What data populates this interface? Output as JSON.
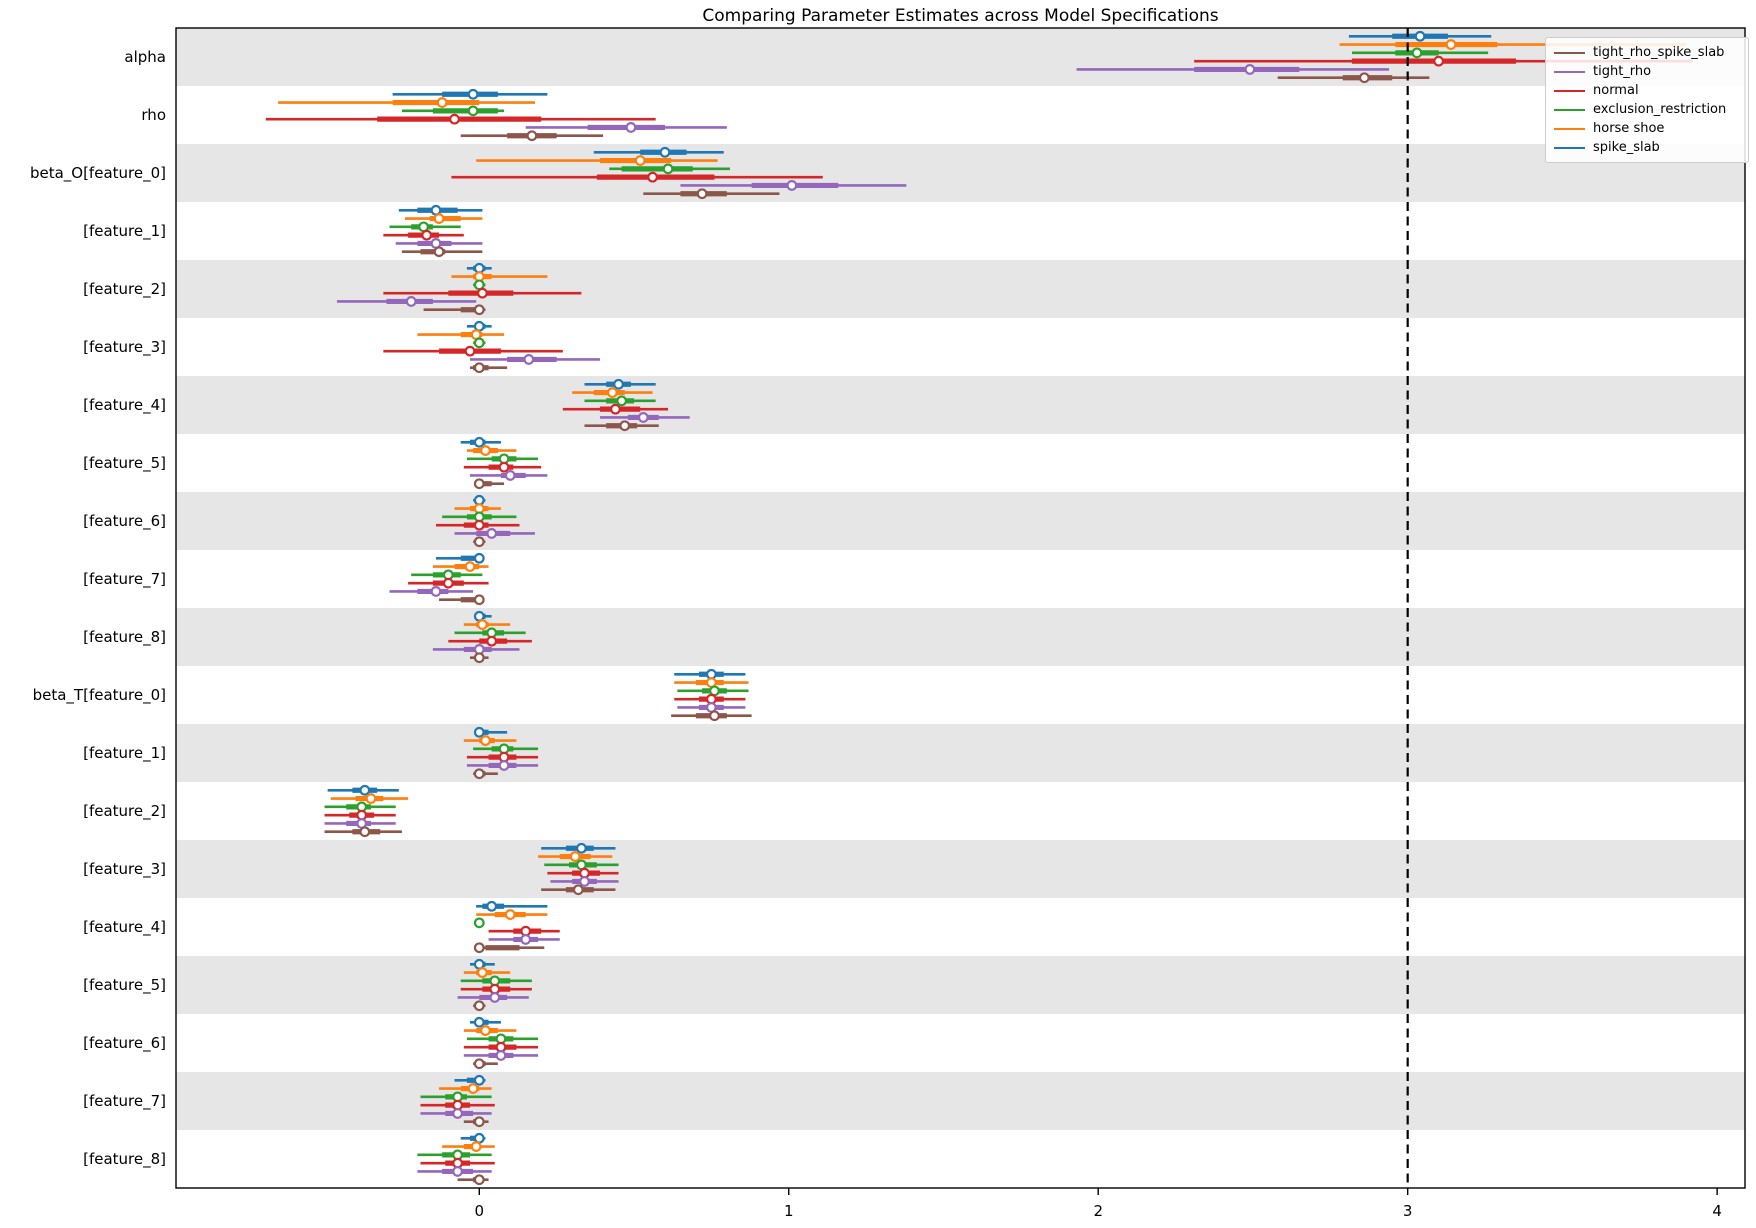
{
  "chart_data": {
    "type": "forest_interval",
    "title": "Comparing Parameter Estimates across Model Specifications",
    "xlabel": "",
    "ylabel": "",
    "x_ticks": [
      0,
      1,
      2,
      3,
      4
    ],
    "xlim": [
      -0.98,
      4.09
    ],
    "reference_line_x": 3,
    "grid": false,
    "band_colors": [
      "#e6e6e6",
      "#ffffff"
    ],
    "marker_fill": "#ffffff",
    "interval_format": [
      "outer_low",
      "inner_low",
      "point",
      "inner_high",
      "outer_high"
    ],
    "series": [
      {
        "name": "spike_slab",
        "color": "#1f77b4"
      },
      {
        "name": "horse shoe",
        "color": "#ff7f0e"
      },
      {
        "name": "exclusion_restriction",
        "color": "#2ca02c"
      },
      {
        "name": "normal",
        "color": "#d62728"
      },
      {
        "name": "tight_rho",
        "color": "#9467bd"
      },
      {
        "name": "tight_rho_spike_slab",
        "color": "#8c564b"
      }
    ],
    "legend": {
      "position": "upper right",
      "entries_top_to_bottom": [
        "tight_rho_spike_slab",
        "tight_rho",
        "normal",
        "exclusion_restriction",
        "horse shoe",
        "spike_slab"
      ]
    },
    "rows": [
      {
        "label": "alpha",
        "values": {
          "spike_slab": [
            2.81,
            2.95,
            3.04,
            3.13,
            3.27
          ],
          "horse shoe": [
            2.78,
            2.96,
            3.14,
            3.29,
            3.9
          ],
          "exclusion_restriction": [
            2.82,
            2.96,
            3.03,
            3.1,
            3.26
          ],
          "normal": [
            2.31,
            2.82,
            3.1,
            3.35,
            3.92
          ],
          "tight_rho": [
            1.93,
            2.31,
            2.49,
            2.65,
            2.94
          ],
          "tight_rho_spike_slab": [
            2.58,
            2.79,
            2.86,
            2.95,
            3.07
          ]
        }
      },
      {
        "label": "rho",
        "values": {
          "spike_slab": [
            -0.28,
            -0.12,
            -0.02,
            0.06,
            0.22
          ],
          "horse shoe": [
            -0.65,
            -0.28,
            -0.12,
            0.0,
            0.18
          ],
          "exclusion_restriction": [
            -0.25,
            -0.15,
            -0.02,
            0.06,
            0.08
          ],
          "normal": [
            -0.69,
            -0.33,
            -0.08,
            0.2,
            0.57
          ],
          "tight_rho": [
            0.15,
            0.35,
            0.49,
            0.6,
            0.8
          ],
          "tight_rho_spike_slab": [
            -0.06,
            0.09,
            0.17,
            0.25,
            0.4
          ]
        }
      },
      {
        "label": "beta_O[feature_0]",
        "values": {
          "spike_slab": [
            0.37,
            0.52,
            0.6,
            0.67,
            0.79
          ],
          "horse shoe": [
            -0.01,
            0.39,
            0.52,
            0.62,
            0.77
          ],
          "exclusion_restriction": [
            0.42,
            0.46,
            0.61,
            0.69,
            0.81
          ],
          "normal": [
            -0.09,
            0.38,
            0.56,
            0.76,
            1.11
          ],
          "tight_rho": [
            0.65,
            0.88,
            1.01,
            1.16,
            1.38
          ],
          "tight_rho_spike_slab": [
            0.53,
            0.65,
            0.72,
            0.8,
            0.97
          ]
        }
      },
      {
        "label": "[feature_1]",
        "values": {
          "spike_slab": [
            -0.26,
            -0.2,
            -0.14,
            -0.07,
            0.01
          ],
          "horse shoe": [
            -0.24,
            -0.16,
            -0.13,
            -0.06,
            0.01
          ],
          "exclusion_restriction": [
            -0.29,
            -0.22,
            -0.18,
            -0.15,
            -0.06
          ],
          "normal": [
            -0.31,
            -0.23,
            -0.17,
            -0.13,
            -0.05
          ],
          "tight_rho": [
            -0.27,
            -0.2,
            -0.14,
            -0.09,
            0.01
          ],
          "tight_rho_spike_slab": [
            -0.25,
            -0.19,
            -0.13,
            -0.11,
            0.01
          ]
        }
      },
      {
        "label": "[feature_2]",
        "values": {
          "spike_slab": [
            -0.04,
            -0.02,
            0.0,
            0.02,
            0.04
          ],
          "horse shoe": [
            -0.09,
            -0.02,
            0.0,
            0.04,
            0.22
          ],
          "exclusion_restriction": [
            -0.02,
            -0.01,
            0.0,
            0.01,
            0.02
          ],
          "normal": [
            -0.31,
            -0.1,
            0.01,
            0.11,
            0.33
          ],
          "tight_rho": [
            -0.46,
            -0.3,
            -0.22,
            -0.15,
            -0.01
          ],
          "tight_rho_spike_slab": [
            -0.18,
            -0.06,
            0.0,
            0.01,
            0.02
          ]
        }
      },
      {
        "label": "[feature_3]",
        "values": {
          "spike_slab": [
            -0.04,
            -0.01,
            0.0,
            0.02,
            0.04
          ],
          "horse shoe": [
            -0.2,
            -0.06,
            -0.01,
            0.01,
            0.08
          ],
          "exclusion_restriction": [
            -0.02,
            -0.01,
            0.0,
            0.01,
            0.02
          ],
          "normal": [
            -0.31,
            -0.13,
            -0.03,
            0.07,
            0.27
          ],
          "tight_rho": [
            -0.03,
            0.09,
            0.16,
            0.25,
            0.39
          ],
          "tight_rho_spike_slab": [
            -0.03,
            -0.02,
            0.0,
            0.03,
            0.09
          ]
        }
      },
      {
        "label": "[feature_4]",
        "values": {
          "spike_slab": [
            0.34,
            0.41,
            0.45,
            0.49,
            0.57
          ],
          "horse shoe": [
            0.3,
            0.37,
            0.43,
            0.47,
            0.56
          ],
          "exclusion_restriction": [
            0.34,
            0.41,
            0.46,
            0.5,
            0.57
          ],
          "normal": [
            0.27,
            0.39,
            0.44,
            0.52,
            0.61
          ],
          "tight_rho": [
            0.39,
            0.48,
            0.53,
            0.58,
            0.68
          ],
          "tight_rho_spike_slab": [
            0.34,
            0.41,
            0.47,
            0.51,
            0.58
          ]
        }
      },
      {
        "label": "[feature_5]",
        "values": {
          "spike_slab": [
            -0.06,
            -0.03,
            0.0,
            0.02,
            0.07
          ],
          "horse shoe": [
            -0.04,
            -0.02,
            0.02,
            0.06,
            0.12
          ],
          "exclusion_restriction": [
            -0.04,
            0.04,
            0.08,
            0.12,
            0.19
          ],
          "normal": [
            -0.05,
            0.03,
            0.08,
            0.11,
            0.2
          ],
          "tight_rho": [
            -0.03,
            0.07,
            0.1,
            0.15,
            0.22
          ],
          "tight_rho_spike_slab": [
            0.0,
            0.0,
            0.0,
            0.04,
            0.08
          ]
        }
      },
      {
        "label": "[feature_6]",
        "values": {
          "spike_slab": [
            -0.02,
            -0.01,
            0.0,
            0.01,
            0.02
          ],
          "horse shoe": [
            -0.08,
            -0.03,
            0.0,
            0.03,
            0.07
          ],
          "exclusion_restriction": [
            -0.12,
            -0.04,
            0.0,
            0.04,
            0.12
          ],
          "normal": [
            -0.14,
            -0.05,
            0.0,
            0.03,
            0.13
          ],
          "tight_rho": [
            -0.08,
            -0.01,
            0.04,
            0.1,
            0.18
          ],
          "tight_rho_spike_slab": [
            -0.02,
            -0.01,
            0.0,
            0.01,
            0.02
          ]
        }
      },
      {
        "label": "[feature_7]",
        "values": {
          "spike_slab": [
            -0.14,
            -0.06,
            0.0,
            0.0,
            0.0
          ],
          "horse shoe": [
            -0.15,
            -0.08,
            -0.03,
            0.0,
            0.03
          ],
          "exclusion_restriction": [
            -0.22,
            -0.15,
            -0.1,
            -0.06,
            0.01
          ],
          "normal": [
            -0.23,
            -0.15,
            -0.1,
            -0.05,
            0.03
          ],
          "tight_rho": [
            -0.29,
            -0.2,
            -0.14,
            -0.1,
            -0.02
          ],
          "tight_rho_spike_slab": [
            -0.13,
            -0.06,
            0.0,
            0.0,
            0.0
          ]
        }
      },
      {
        "label": "[feature_8]",
        "values": {
          "spike_slab": [
            -0.01,
            0.0,
            0.0,
            0.02,
            0.04
          ],
          "horse shoe": [
            -0.05,
            -0.01,
            0.01,
            0.03,
            0.1
          ],
          "exclusion_restriction": [
            -0.08,
            0.01,
            0.04,
            0.08,
            0.15
          ],
          "normal": [
            -0.1,
            0.0,
            0.04,
            0.09,
            0.17
          ],
          "tight_rho": [
            -0.15,
            -0.05,
            0.0,
            0.04,
            0.13
          ],
          "tight_rho_spike_slab": [
            -0.03,
            -0.01,
            0.0,
            0.01,
            0.03
          ]
        }
      },
      {
        "label": "beta_T[feature_0]",
        "values": {
          "spike_slab": [
            0.63,
            0.71,
            0.75,
            0.79,
            0.86
          ],
          "horse shoe": [
            0.63,
            0.7,
            0.75,
            0.79,
            0.87
          ],
          "exclusion_restriction": [
            0.64,
            0.72,
            0.76,
            0.8,
            0.87
          ],
          "normal": [
            0.63,
            0.71,
            0.75,
            0.79,
            0.86
          ],
          "tight_rho": [
            0.64,
            0.71,
            0.75,
            0.79,
            0.86
          ],
          "tight_rho_spike_slab": [
            0.62,
            0.7,
            0.76,
            0.8,
            0.88
          ]
        }
      },
      {
        "label": "[feature_1]",
        "values": {
          "spike_slab": [
            0.0,
            0.0,
            0.0,
            0.03,
            0.09
          ],
          "horse shoe": [
            -0.05,
            0.0,
            0.02,
            0.05,
            0.12
          ],
          "exclusion_restriction": [
            -0.02,
            0.04,
            0.08,
            0.11,
            0.19
          ],
          "normal": [
            -0.04,
            0.03,
            0.08,
            0.12,
            0.19
          ],
          "tight_rho": [
            -0.04,
            0.03,
            0.08,
            0.12,
            0.19
          ],
          "tight_rho_spike_slab": [
            -0.02,
            0.0,
            0.0,
            0.02,
            0.06
          ]
        }
      },
      {
        "label": "[feature_2]",
        "values": {
          "spike_slab": [
            -0.49,
            -0.41,
            -0.37,
            -0.33,
            -0.26
          ],
          "horse shoe": [
            -0.48,
            -0.4,
            -0.35,
            -0.31,
            -0.23
          ],
          "exclusion_restriction": [
            -0.5,
            -0.43,
            -0.38,
            -0.35,
            -0.27
          ],
          "normal": [
            -0.5,
            -0.42,
            -0.38,
            -0.34,
            -0.27
          ],
          "tight_rho": [
            -0.5,
            -0.43,
            -0.38,
            -0.35,
            -0.27
          ],
          "tight_rho_spike_slab": [
            -0.5,
            -0.41,
            -0.37,
            -0.32,
            -0.25
          ]
        }
      },
      {
        "label": "[feature_3]",
        "values": {
          "spike_slab": [
            0.2,
            0.28,
            0.33,
            0.37,
            0.44
          ],
          "horse shoe": [
            0.19,
            0.26,
            0.31,
            0.36,
            0.43
          ],
          "exclusion_restriction": [
            0.21,
            0.29,
            0.33,
            0.38,
            0.45
          ],
          "normal": [
            0.22,
            0.3,
            0.34,
            0.39,
            0.45
          ],
          "tight_rho": [
            0.23,
            0.3,
            0.34,
            0.38,
            0.45
          ],
          "tight_rho_spike_slab": [
            0.2,
            0.28,
            0.32,
            0.37,
            0.44
          ]
        }
      },
      {
        "label": "[feature_4]",
        "values": {
          "spike_slab": [
            -0.01,
            0.01,
            0.04,
            0.08,
            0.22
          ],
          "horse shoe": [
            -0.01,
            0.05,
            0.1,
            0.15,
            0.22
          ],
          "exclusion_restriction": [
            0.0,
            0.0,
            0.0,
            0.0,
            0.0
          ],
          "normal": [
            0.03,
            0.11,
            0.15,
            0.2,
            0.26
          ],
          "tight_rho": [
            0.03,
            0.11,
            0.15,
            0.19,
            0.26
          ],
          "tight_rho_spike_slab": [
            0.0,
            0.02,
            0.0,
            0.13,
            0.21
          ]
        }
      },
      {
        "label": "[feature_5]",
        "values": {
          "spike_slab": [
            -0.03,
            -0.01,
            0.0,
            0.02,
            0.05
          ],
          "horse shoe": [
            -0.05,
            -0.01,
            0.01,
            0.04,
            0.1
          ],
          "exclusion_restriction": [
            -0.06,
            0.01,
            0.05,
            0.1,
            0.17
          ],
          "normal": [
            -0.06,
            0.01,
            0.05,
            0.1,
            0.17
          ],
          "tight_rho": [
            -0.07,
            0.0,
            0.05,
            0.09,
            0.16
          ],
          "tight_rho_spike_slab": [
            -0.02,
            -0.01,
            0.0,
            0.01,
            0.02
          ]
        }
      },
      {
        "label": "[feature_6]",
        "values": {
          "spike_slab": [
            -0.03,
            -0.01,
            0.0,
            0.03,
            0.07
          ],
          "horse shoe": [
            -0.05,
            -0.01,
            0.02,
            0.06,
            0.12
          ],
          "exclusion_restriction": [
            -0.04,
            0.03,
            0.07,
            0.11,
            0.19
          ],
          "normal": [
            -0.05,
            0.03,
            0.07,
            0.12,
            0.19
          ],
          "tight_rho": [
            -0.05,
            0.03,
            0.07,
            0.11,
            0.19
          ],
          "tight_rho_spike_slab": [
            -0.02,
            -0.01,
            0.0,
            0.02,
            0.06
          ]
        }
      },
      {
        "label": "[feature_7]",
        "values": {
          "spike_slab": [
            -0.08,
            -0.04,
            0.0,
            0.0,
            0.02
          ],
          "horse shoe": [
            -0.13,
            -0.06,
            -0.02,
            0.0,
            0.04
          ],
          "exclusion_restriction": [
            -0.19,
            -0.11,
            -0.07,
            -0.04,
            0.04
          ],
          "normal": [
            -0.19,
            -0.11,
            -0.07,
            -0.03,
            0.05
          ],
          "tight_rho": [
            -0.19,
            -0.11,
            -0.07,
            -0.02,
            0.04
          ],
          "tight_rho_spike_slab": [
            -0.05,
            -0.02,
            0.0,
            0.01,
            0.03
          ]
        }
      },
      {
        "label": "[feature_8]",
        "values": {
          "spike_slab": [
            -0.06,
            -0.03,
            0.0,
            0.01,
            0.02
          ],
          "horse shoe": [
            -0.12,
            -0.05,
            -0.01,
            0.0,
            0.05
          ],
          "exclusion_restriction": [
            -0.2,
            -0.12,
            -0.07,
            -0.03,
            0.04
          ],
          "normal": [
            -0.19,
            -0.11,
            -0.07,
            -0.03,
            0.05
          ],
          "tight_rho": [
            -0.2,
            -0.12,
            -0.07,
            -0.02,
            0.04
          ],
          "tight_rho_spike_slab": [
            -0.07,
            -0.02,
            0.0,
            0.01,
            0.03
          ]
        }
      }
    ]
  }
}
